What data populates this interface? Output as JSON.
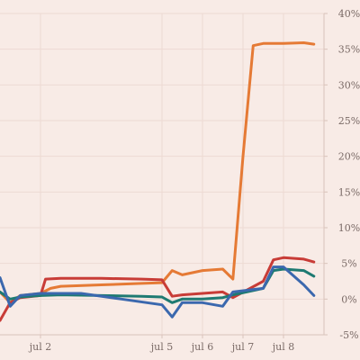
{
  "chart_data": {
    "type": "line",
    "title": "",
    "xlabel": "",
    "ylabel": "",
    "y_unit": "%",
    "ylim": [
      -5,
      40
    ],
    "xlim": [
      "2024-07-01",
      "2024-07-09"
    ],
    "y_ticks": [
      {
        "value": -5,
        "label": "-5%"
      },
      {
        "value": 0,
        "label": "0%"
      },
      {
        "value": 5,
        "label": "5%"
      },
      {
        "value": 10,
        "label": "10%"
      },
      {
        "value": 15,
        "label": "15%"
      },
      {
        "value": 20,
        "label": "20%"
      },
      {
        "value": 25,
        "label": "25%"
      },
      {
        "value": 30,
        "label": "30%"
      },
      {
        "value": 35,
        "label": "35%"
      },
      {
        "value": 40,
        "label": "40%"
      }
    ],
    "x_ticks": [
      {
        "value": "2024-07-02",
        "label": "jul 2"
      },
      {
        "value": "2024-07-05",
        "label": "jul 5"
      },
      {
        "value": "2024-07-06",
        "label": "jul 6"
      },
      {
        "value": "2024-07-07",
        "label": "jul 7"
      },
      {
        "value": "2024-07-08",
        "label": "jul 8"
      }
    ],
    "grid": true,
    "legend": "none",
    "series": [
      {
        "color": "#e57a35",
        "points": [
          [
            "2024-07-01 00:00",
            1.0
          ],
          [
            "2024-07-01 06:00",
            -0.5
          ],
          [
            "2024-07-01 12:00",
            0.5
          ],
          [
            "2024-07-02 00:00",
            0.8
          ],
          [
            "2024-07-02 06:00",
            1.5
          ],
          [
            "2024-07-02 12:00",
            1.8
          ],
          [
            "2024-07-03 12:00",
            2.0
          ],
          [
            "2024-07-04 12:00",
            2.2
          ],
          [
            "2024-07-05 00:00",
            2.3
          ],
          [
            "2024-07-05 06:00",
            4.0
          ],
          [
            "2024-07-05 12:00",
            3.4
          ],
          [
            "2024-07-06 00:00",
            4.0
          ],
          [
            "2024-07-06 12:00",
            4.2
          ],
          [
            "2024-07-06 18:00",
            2.8
          ],
          [
            "2024-07-07 00:00",
            20.0
          ],
          [
            "2024-07-07 06:00",
            35.5
          ],
          [
            "2024-07-07 12:00",
            35.8
          ],
          [
            "2024-07-08 00:00",
            35.8
          ],
          [
            "2024-07-08 12:00",
            35.9
          ],
          [
            "2024-07-08 18:00",
            35.7
          ]
        ]
      },
      {
        "color": "#c83c37",
        "points": [
          [
            "2024-07-01 00:00",
            -3.0
          ],
          [
            "2024-07-01 06:00",
            -0.5
          ],
          [
            "2024-07-01 12:00",
            0.2
          ],
          [
            "2024-07-02 00:00",
            0.5
          ],
          [
            "2024-07-02 03:00",
            2.8
          ],
          [
            "2024-07-02 12:00",
            2.9
          ],
          [
            "2024-07-03 12:00",
            2.9
          ],
          [
            "2024-07-04 12:00",
            2.8
          ],
          [
            "2024-07-05 00:00",
            2.7
          ],
          [
            "2024-07-05 06:00",
            0.4
          ],
          [
            "2024-07-05 12:00",
            0.6
          ],
          [
            "2024-07-06 00:00",
            0.8
          ],
          [
            "2024-07-06 12:00",
            1.0
          ],
          [
            "2024-07-06 18:00",
            0.2
          ],
          [
            "2024-07-07 12:00",
            2.5
          ],
          [
            "2024-07-07 18:00",
            5.5
          ],
          [
            "2024-07-08 00:00",
            5.8
          ],
          [
            "2024-07-08 12:00",
            5.6
          ],
          [
            "2024-07-08 18:00",
            5.2
          ]
        ]
      },
      {
        "color": "#1e7a72",
        "points": [
          [
            "2024-07-01 00:00",
            1.0
          ],
          [
            "2024-07-01 06:00",
            0.0
          ],
          [
            "2024-07-01 12:00",
            0.3
          ],
          [
            "2024-07-02 00:00",
            0.5
          ],
          [
            "2024-07-02 12:00",
            0.6
          ],
          [
            "2024-07-03 12:00",
            0.5
          ],
          [
            "2024-07-04 12:00",
            0.4
          ],
          [
            "2024-07-05 00:00",
            0.3
          ],
          [
            "2024-07-05 06:00",
            -0.5
          ],
          [
            "2024-07-05 12:00",
            0.0
          ],
          [
            "2024-07-06 00:00",
            0.0
          ],
          [
            "2024-07-06 12:00",
            0.2
          ],
          [
            "2024-07-06 18:00",
            0.6
          ],
          [
            "2024-07-07 12:00",
            1.5
          ],
          [
            "2024-07-07 18:00",
            4.0
          ],
          [
            "2024-07-08 00:00",
            4.2
          ],
          [
            "2024-07-08 12:00",
            4.0
          ],
          [
            "2024-07-08 18:00",
            3.2
          ]
        ]
      },
      {
        "color": "#3b68ae",
        "points": [
          [
            "2024-07-01 00:00",
            3.0
          ],
          [
            "2024-07-01 06:00",
            -1.0
          ],
          [
            "2024-07-01 12:00",
            0.5
          ],
          [
            "2024-07-02 00:00",
            0.8
          ],
          [
            "2024-07-02 06:00",
            0.8
          ],
          [
            "2024-07-03 00:00",
            0.8
          ],
          [
            "2024-07-04 00:00",
            0.0
          ],
          [
            "2024-07-05 00:00",
            -0.8
          ],
          [
            "2024-07-05 06:00",
            -2.5
          ],
          [
            "2024-07-05 12:00",
            -0.5
          ],
          [
            "2024-07-06 00:00",
            -0.5
          ],
          [
            "2024-07-06 12:00",
            -1.0
          ],
          [
            "2024-07-06 18:00",
            1.0
          ],
          [
            "2024-07-07 12:00",
            1.5
          ],
          [
            "2024-07-07 18:00",
            4.5
          ],
          [
            "2024-07-08 00:00",
            4.5
          ],
          [
            "2024-07-08 12:00",
            2.0
          ],
          [
            "2024-07-08 18:00",
            0.5
          ]
        ]
      }
    ]
  }
}
